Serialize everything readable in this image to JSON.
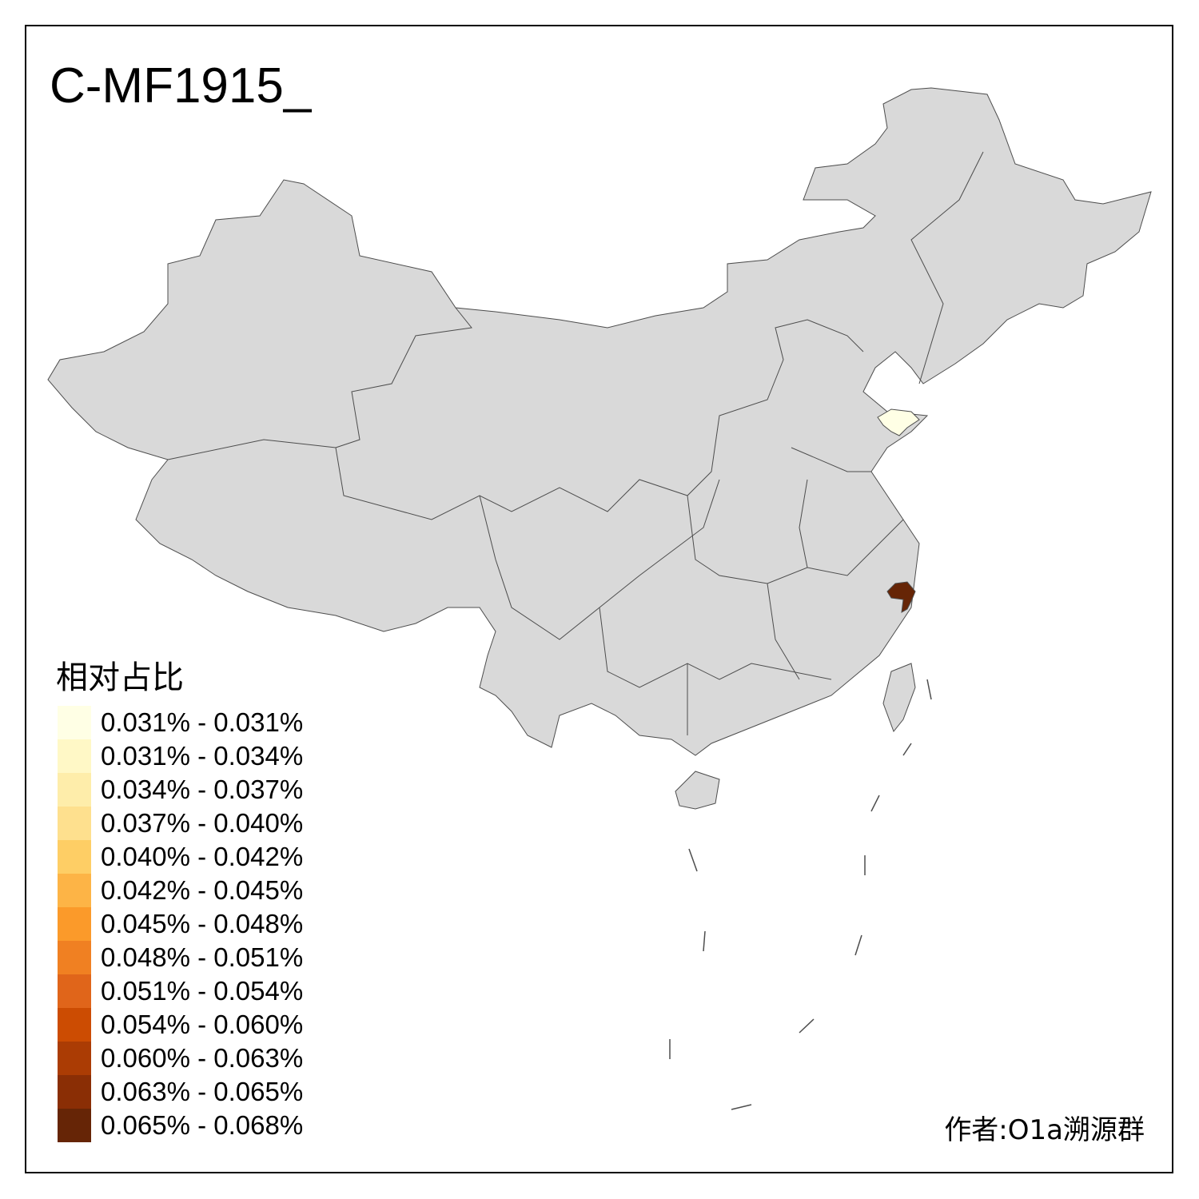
{
  "title": "C-MF1915_",
  "legend": {
    "title": "相对占比",
    "items": [
      {
        "label": "0.031% - 0.031%",
        "color": "#FFFFE5"
      },
      {
        "label": "0.031% - 0.034%",
        "color": "#FFF8C6"
      },
      {
        "label": "0.034% - 0.037%",
        "color": "#FEEDAA"
      },
      {
        "label": "0.037% - 0.040%",
        "color": "#FEE08E"
      },
      {
        "label": "0.040% - 0.042%",
        "color": "#FECE65"
      },
      {
        "label": "0.042% - 0.045%",
        "color": "#FDB446"
      },
      {
        "label": "0.045% - 0.048%",
        "color": "#FB9A2A"
      },
      {
        "label": "0.048% - 0.051%",
        "color": "#F08022"
      },
      {
        "label": "0.051% - 0.054%",
        "color": "#E0651A"
      },
      {
        "label": "0.054% - 0.060%",
        "color": "#CC4C02"
      },
      {
        "label": "0.060% - 0.063%",
        "color": "#AB3C04"
      },
      {
        "label": "0.063% - 0.065%",
        "color": "#8A2E05"
      },
      {
        "label": "0.065% - 0.068%",
        "color": "#662506"
      }
    ]
  },
  "map": {
    "no_data_color": "#D9D9D9",
    "border_color": "#4D4D4D",
    "highlighted_regions": [
      {
        "region": "Shandong (north)",
        "class": "0.031% - 0.031%",
        "color": "#FFFFE5"
      },
      {
        "region": "Zhejiang (east)",
        "class": "0.065% - 0.068%",
        "color": "#662506"
      }
    ]
  },
  "author": "作者:O1a溯源群"
}
